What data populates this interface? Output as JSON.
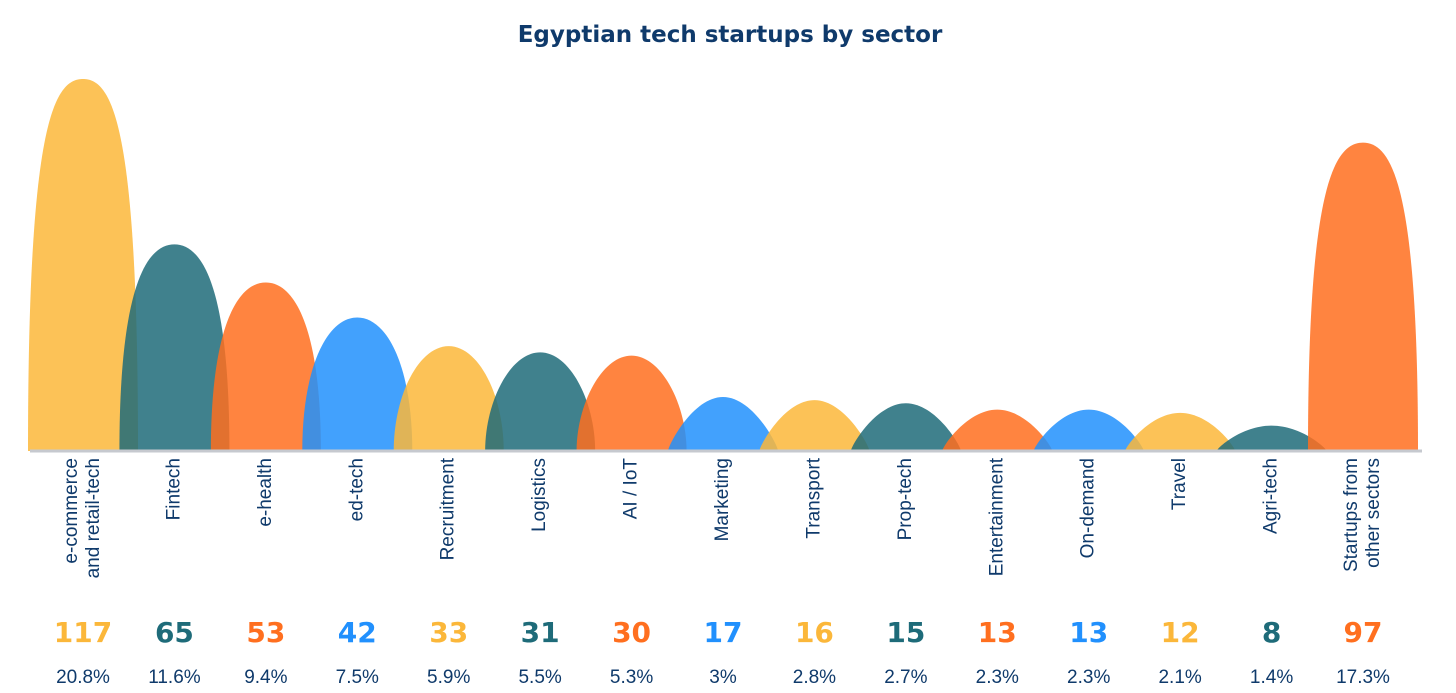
{
  "chart_data": {
    "type": "bar",
    "title": "Egyptian tech startups by sector",
    "xlabel": "",
    "ylabel": "",
    "ylim": [
      0,
      117
    ],
    "grid": false,
    "categories": [
      [
        "e-commerce",
        "and retail-tech"
      ],
      [
        "Fintech"
      ],
      [
        "e-health"
      ],
      [
        "ed-tech"
      ],
      [
        "Recruitment"
      ],
      [
        "Logistics"
      ],
      [
        "AI / IoT"
      ],
      [
        "Marketing"
      ],
      [
        "Transport"
      ],
      [
        "Prop-tech"
      ],
      [
        "Entertainment"
      ],
      [
        "On-demand"
      ],
      [
        "Travel"
      ],
      [
        "Agri-tech"
      ],
      [
        "Startups from",
        "other sectors"
      ]
    ],
    "values": [
      117,
      65,
      53,
      42,
      33,
      31,
      30,
      17,
      16,
      15,
      13,
      13,
      12,
      8,
      97
    ],
    "percentages": [
      "20.8%",
      "11.6%",
      "9.4%",
      "7.5%",
      "5.9%",
      "5.5%",
      "5.3%",
      "3%",
      "2.8%",
      "2.7%",
      "2.3%",
      "2.3%",
      "2.1%",
      "1.4%",
      "17.3%"
    ],
    "colors": [
      "#fbb73a",
      "#1e6b79",
      "#ff6f1f",
      "#2190fd",
      "#fbb73a",
      "#1e6b79",
      "#ff6f1f",
      "#2190fd",
      "#fbb73a",
      "#1e6b79",
      "#ff6f1f",
      "#2190fd",
      "#fbb73a",
      "#1e6b79",
      "#ff6f1f"
    ]
  }
}
